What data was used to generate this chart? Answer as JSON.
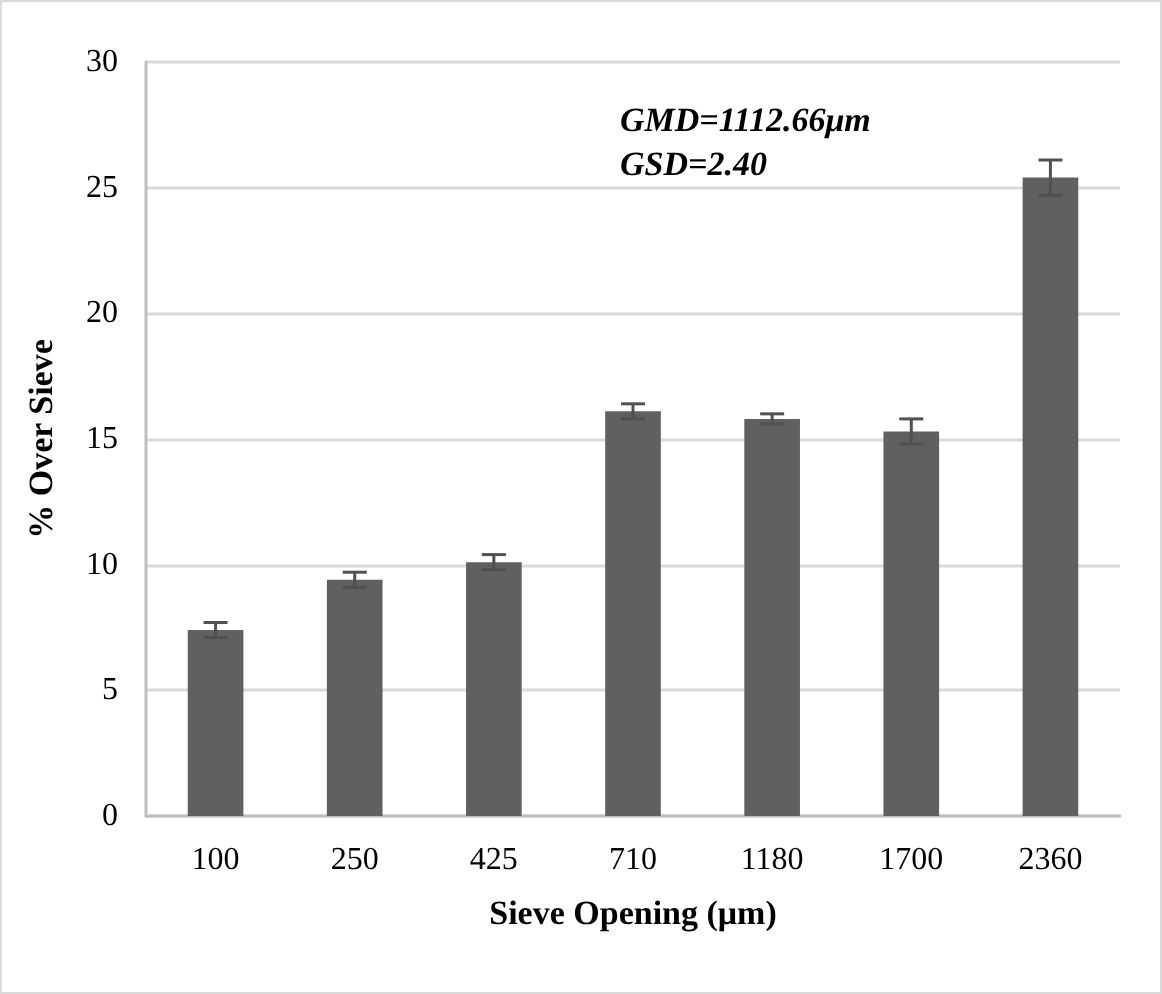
{
  "chart_data": {
    "type": "bar",
    "xlabel": "Sieve Opening (μm)",
    "ylabel": "% Over Sieve",
    "categories": [
      "100",
      "250",
      "425",
      "710",
      "1180",
      "1700",
      "2360"
    ],
    "values": [
      7.4,
      9.4,
      10.1,
      16.1,
      15.8,
      15.3,
      25.4
    ],
    "errors": [
      0.3,
      0.3,
      0.3,
      0.3,
      0.2,
      0.5,
      0.7
    ],
    "color": "#606060",
    "ylim": [
      0,
      30
    ],
    "yticks": [
      0,
      5,
      10,
      15,
      20,
      25,
      30
    ],
    "grid": "y",
    "annotations": [
      "GMD=1112.66μm",
      "GSD=2.40"
    ]
  }
}
